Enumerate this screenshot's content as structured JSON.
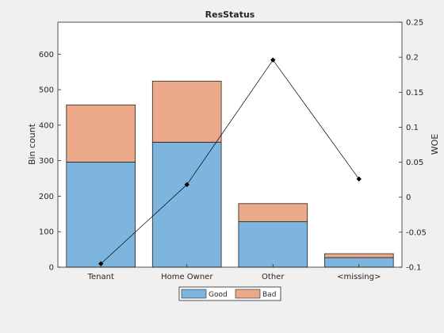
{
  "chart_data": {
    "type": "bar",
    "title": "ResStatus",
    "xlabel": "",
    "ylabel": "Bin count",
    "y2label": "WOE",
    "categories": [
      "Tenant",
      "Home Owner",
      "Other",
      "<missing>"
    ],
    "stacked": true,
    "series": [
      {
        "name": "Good",
        "type": "bar",
        "axis": "left",
        "values": [
          296,
          352,
          128,
          27
        ],
        "color": "#7eb5de"
      },
      {
        "name": "Bad",
        "type": "bar",
        "axis": "left",
        "values": [
          161,
          172,
          51,
          11
        ],
        "color": "#eba98a"
      },
      {
        "name": "",
        "type": "line",
        "axis": "right",
        "values": [
          -0.095,
          0.018,
          0.196,
          0.026
        ],
        "color": "#000000"
      }
    ],
    "ylim": [
      0,
      690
    ],
    "y2lim": [
      -0.1,
      0.25
    ],
    "yticks": [
      0,
      100,
      200,
      300,
      400,
      500,
      600
    ],
    "y2ticks": [
      -0.1,
      -0.05,
      0,
      0.05,
      0.1,
      0.15,
      0.2,
      0.25
    ],
    "y2ticklabels": [
      "-0.1",
      "-0.05",
      "0",
      "0.05",
      "0.1",
      "0.15",
      "0.2",
      "0.25"
    ],
    "legend": {
      "entries": [
        "Good",
        "Bad"
      ],
      "placement": "bottom-center"
    },
    "grid": false
  }
}
